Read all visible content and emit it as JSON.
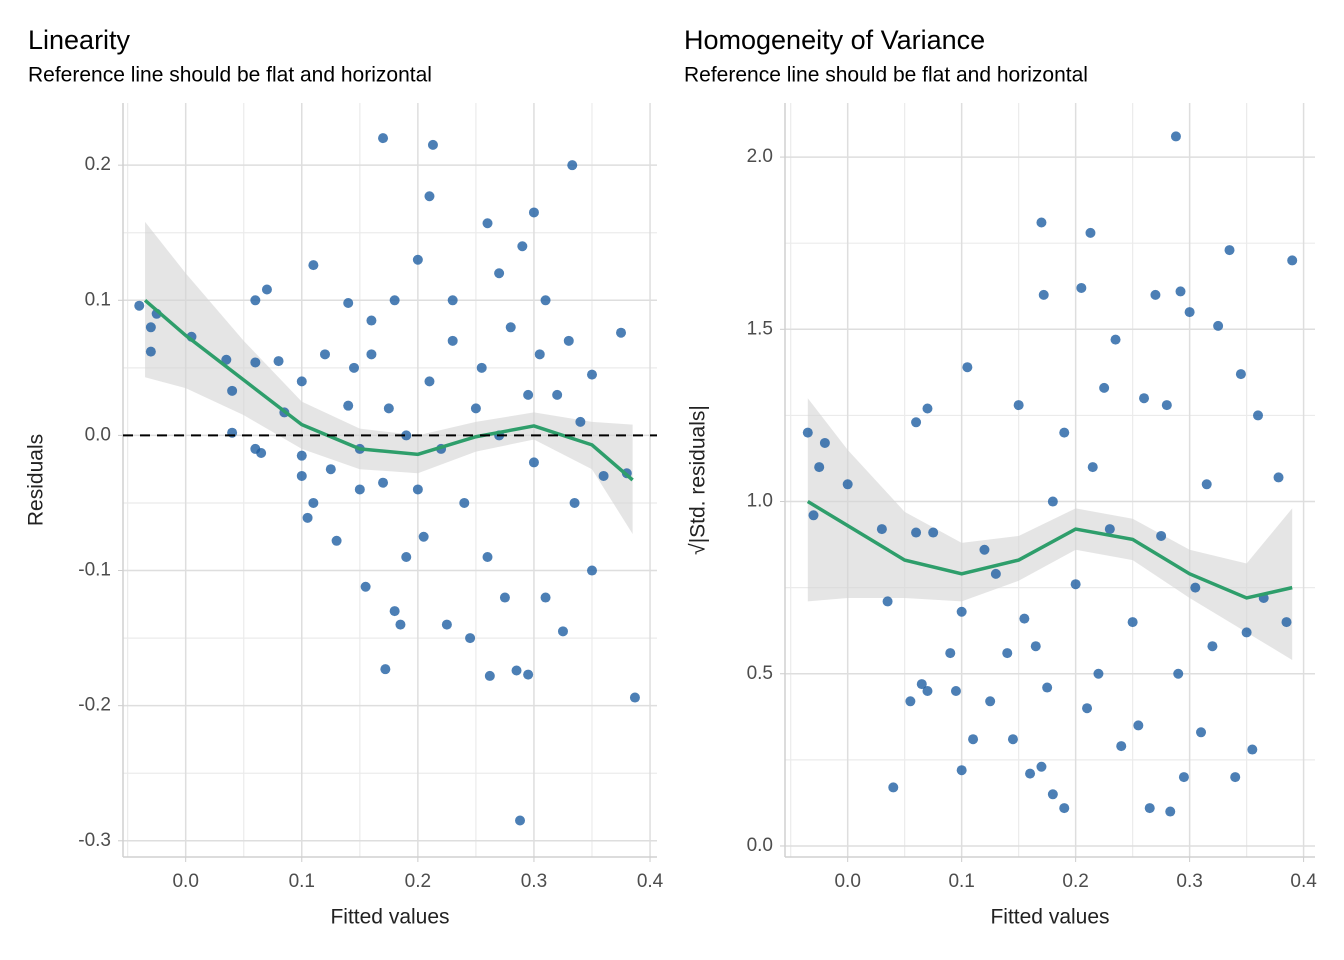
{
  "chart_data": [
    {
      "type": "scatter",
      "title": "Linearity",
      "subtitle": "Reference line should be flat and horizontal",
      "xlabel": "Fitted values",
      "ylabel": "Residuals",
      "color": "#1f5fa3",
      "xlim": [
        -0.054,
        0.406
      ],
      "ylim": [
        -0.312,
        0.246
      ],
      "xticks": [
        {
          "value": 0,
          "label": "0.0"
        },
        0.1,
        0.2,
        0.3,
        0.4
      ],
      "yticks": [
        -0.3,
        -0.2,
        -0.1,
        {
          "value": 0,
          "label": "0.0"
        },
        0.1,
        0.2
      ],
      "grid": true,
      "reference_line": 0,
      "x": [
        -0.04,
        -0.03,
        -0.025,
        -0.03,
        0.005,
        0.035,
        0.04,
        0.04,
        0.06,
        0.06,
        0.07,
        0.065,
        0.06,
        0.08,
        0.085,
        0.1,
        0.1,
        0.1,
        0.105,
        0.11,
        0.11,
        0.12,
        0.125,
        0.13,
        0.14,
        0.14,
        0.145,
        0.15,
        0.15,
        0.155,
        0.16,
        0.16,
        0.17,
        0.17,
        0.172,
        0.175,
        0.18,
        0.18,
        0.185,
        0.19,
        0.19,
        0.2,
        0.2,
        0.205,
        0.21,
        0.213,
        0.21,
        0.22,
        0.225,
        0.23,
        0.23,
        0.24,
        0.245,
        0.25,
        0.255,
        0.26,
        0.26,
        0.262,
        0.27,
        0.27,
        0.275,
        0.28,
        0.285,
        0.288,
        0.29,
        0.295,
        0.295,
        0.3,
        0.3,
        0.305,
        0.31,
        0.31,
        0.32,
        0.325,
        0.33,
        0.333,
        0.335,
        0.34,
        0.35,
        0.35,
        0.36,
        0.375,
        0.38,
        0.387
      ],
      "y": [
        0.096,
        0.08,
        0.09,
        0.062,
        0.073,
        0.056,
        0.033,
        0.002,
        0.054,
        0.1,
        0.108,
        -0.013,
        -0.01,
        0.055,
        0.017,
        0.04,
        -0.015,
        -0.03,
        -0.061,
        0.126,
        -0.05,
        0.06,
        -0.025,
        -0.078,
        0.022,
        0.098,
        0.05,
        -0.01,
        -0.04,
        -0.112,
        0.085,
        0.06,
        0.22,
        -0.035,
        -0.173,
        0.02,
        -0.13,
        0.1,
        -0.14,
        0.0,
        -0.09,
        0.13,
        -0.04,
        -0.075,
        0.177,
        0.215,
        0.04,
        -0.01,
        -0.14,
        0.07,
        0.1,
        -0.05,
        -0.15,
        0.02,
        0.05,
        0.157,
        -0.09,
        -0.178,
        0.12,
        0.0,
        -0.12,
        0.08,
        -0.174,
        -0.285,
        0.14,
        0.03,
        -0.177,
        0.165,
        -0.02,
        0.06,
        -0.12,
        0.1,
        0.03,
        -0.145,
        0.07,
        0.2,
        -0.05,
        0.01,
        -0.1,
        0.045,
        -0.03,
        0.076,
        -0.028,
        -0.194
      ],
      "smooth": {
        "color": "#2e9e6b",
        "band_color": "#d4d4d4",
        "x": [
          -0.035,
          0.0,
          0.05,
          0.1,
          0.15,
          0.2,
          0.25,
          0.3,
          0.35,
          0.385
        ],
        "y": [
          0.1,
          0.074,
          0.041,
          0.008,
          -0.01,
          -0.014,
          -0.001,
          0.007,
          -0.007,
          -0.033
        ],
        "lower": [
          0.043,
          0.035,
          0.015,
          -0.01,
          -0.025,
          -0.028,
          -0.012,
          -0.003,
          -0.025,
          -0.073
        ],
        "upper": [
          0.158,
          0.12,
          0.07,
          0.025,
          0.005,
          0.0,
          0.01,
          0.017,
          0.01,
          0.008
        ]
      }
    },
    {
      "type": "scatter",
      "title": "Homogeneity of Variance",
      "subtitle": "Reference line should be flat and horizontal",
      "xlabel": "Fitted values",
      "ylabel": "√|Std. residuals|",
      "color": "#1f5fa3",
      "xlim": [
        -0.055,
        0.41
      ],
      "ylim": [
        -0.032,
        2.157
      ],
      "xticks": [
        {
          "value": 0,
          "label": "0.0"
        },
        0.1,
        0.2,
        0.3,
        0.4
      ],
      "yticks": [
        {
          "value": 0,
          "label": "0.0"
        },
        0.5,
        {
          "value": 1,
          "label": "1.0"
        },
        1.5,
        {
          "value": 2,
          "label": "2.0"
        }
      ],
      "grid": true,
      "x": [
        -0.035,
        -0.03,
        -0.025,
        -0.02,
        0.0,
        0.03,
        0.035,
        0.04,
        0.055,
        0.06,
        0.06,
        0.065,
        0.07,
        0.07,
        0.075,
        0.09,
        0.095,
        0.1,
        0.1,
        0.105,
        0.11,
        0.12,
        0.125,
        0.13,
        0.14,
        0.145,
        0.15,
        0.155,
        0.16,
        0.165,
        0.17,
        0.172,
        0.17,
        0.175,
        0.18,
        0.18,
        0.19,
        0.19,
        0.2,
        0.205,
        0.21,
        0.213,
        0.215,
        0.22,
        0.225,
        0.23,
        0.235,
        0.24,
        0.25,
        0.255,
        0.26,
        0.265,
        0.27,
        0.275,
        0.28,
        0.283,
        0.288,
        0.29,
        0.292,
        0.295,
        0.3,
        0.305,
        0.31,
        0.315,
        0.32,
        0.325,
        0.335,
        0.34,
        0.345,
        0.35,
        0.355,
        0.36,
        0.365,
        0.378,
        0.385,
        0.39
      ],
      "y": [
        1.2,
        0.96,
        1.1,
        1.17,
        1.05,
        0.92,
        0.71,
        0.17,
        0.42,
        1.23,
        0.91,
        0.47,
        0.45,
        1.27,
        0.91,
        0.56,
        0.45,
        0.68,
        0.22,
        1.39,
        0.31,
        0.86,
        0.42,
        0.79,
        0.56,
        0.31,
        1.28,
        0.66,
        0.21,
        0.58,
        1.81,
        1.6,
        0.23,
        0.46,
        1.0,
        0.15,
        0.11,
        1.2,
        0.76,
        1.62,
        0.4,
        1.78,
        1.1,
        0.5,
        1.33,
        0.92,
        1.47,
        0.29,
        0.65,
        0.35,
        1.3,
        0.11,
        1.6,
        0.9,
        1.28,
        0.1,
        2.06,
        0.5,
        1.61,
        0.2,
        1.55,
        0.75,
        0.33,
        1.05,
        0.58,
        1.51,
        1.73,
        0.2,
        1.37,
        0.62,
        0.28,
        1.25,
        0.72,
        1.07,
        0.65,
        1.7
      ],
      "smooth": {
        "color": "#2e9e6b",
        "band_color": "#d4d4d4",
        "x": [
          -0.035,
          0.0,
          0.05,
          0.1,
          0.15,
          0.2,
          0.25,
          0.3,
          0.35,
          0.39
        ],
        "y": [
          1.0,
          0.93,
          0.83,
          0.79,
          0.83,
          0.92,
          0.89,
          0.79,
          0.72,
          0.75
        ],
        "lower": [
          0.71,
          0.72,
          0.72,
          0.71,
          0.77,
          0.86,
          0.83,
          0.72,
          0.62,
          0.54
        ],
        "upper": [
          1.3,
          1.15,
          0.97,
          0.88,
          0.9,
          0.98,
          0.95,
          0.86,
          0.82,
          0.98
        ]
      }
    }
  ]
}
